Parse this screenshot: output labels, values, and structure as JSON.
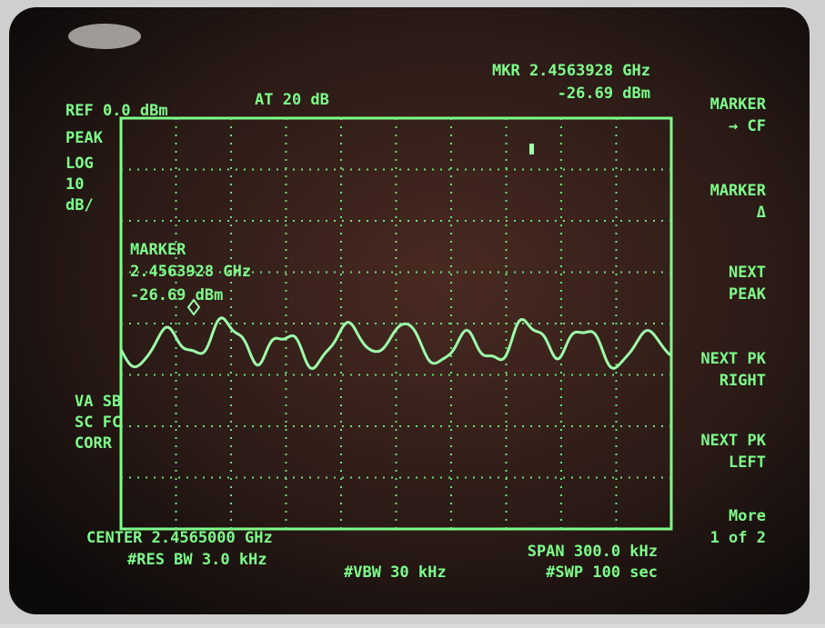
{
  "header": {
    "ref_level": "REF 0.0 dBm",
    "attenuation": "AT 20 dB",
    "marker_frequency": "MKR 2.4563928 GHz",
    "marker_amplitude": "-26.69 dBm"
  },
  "scale": {
    "detector": "PEAK",
    "mode": "LOG",
    "per_division": "10",
    "units": "dB/"
  },
  "marker_readout": {
    "title": "MARKER",
    "frequency": "2.4563928 GHz",
    "amplitude": "-26.69 dBm"
  },
  "status": [
    "VA SB",
    "SC FC",
    "CORR"
  ],
  "softkeys": [
    [
      "MARKER",
      "→ CF"
    ],
    [
      "MARKER",
      "Δ"
    ],
    [
      "NEXT",
      "PEAK"
    ],
    [
      "NEXT PK",
      "RIGHT"
    ],
    [
      "NEXT PK",
      "LEFT"
    ],
    [
      "More",
      "1 of 2"
    ]
  ],
  "footer": {
    "center": "CENTER 2.4565000 GHz",
    "res_bw": "#RES BW 3.0 kHz",
    "vbw": "#VBW 30 kHz",
    "span": "SPAN 300.0 kHz",
    "sweep": "#SWP 100 sec"
  }
}
